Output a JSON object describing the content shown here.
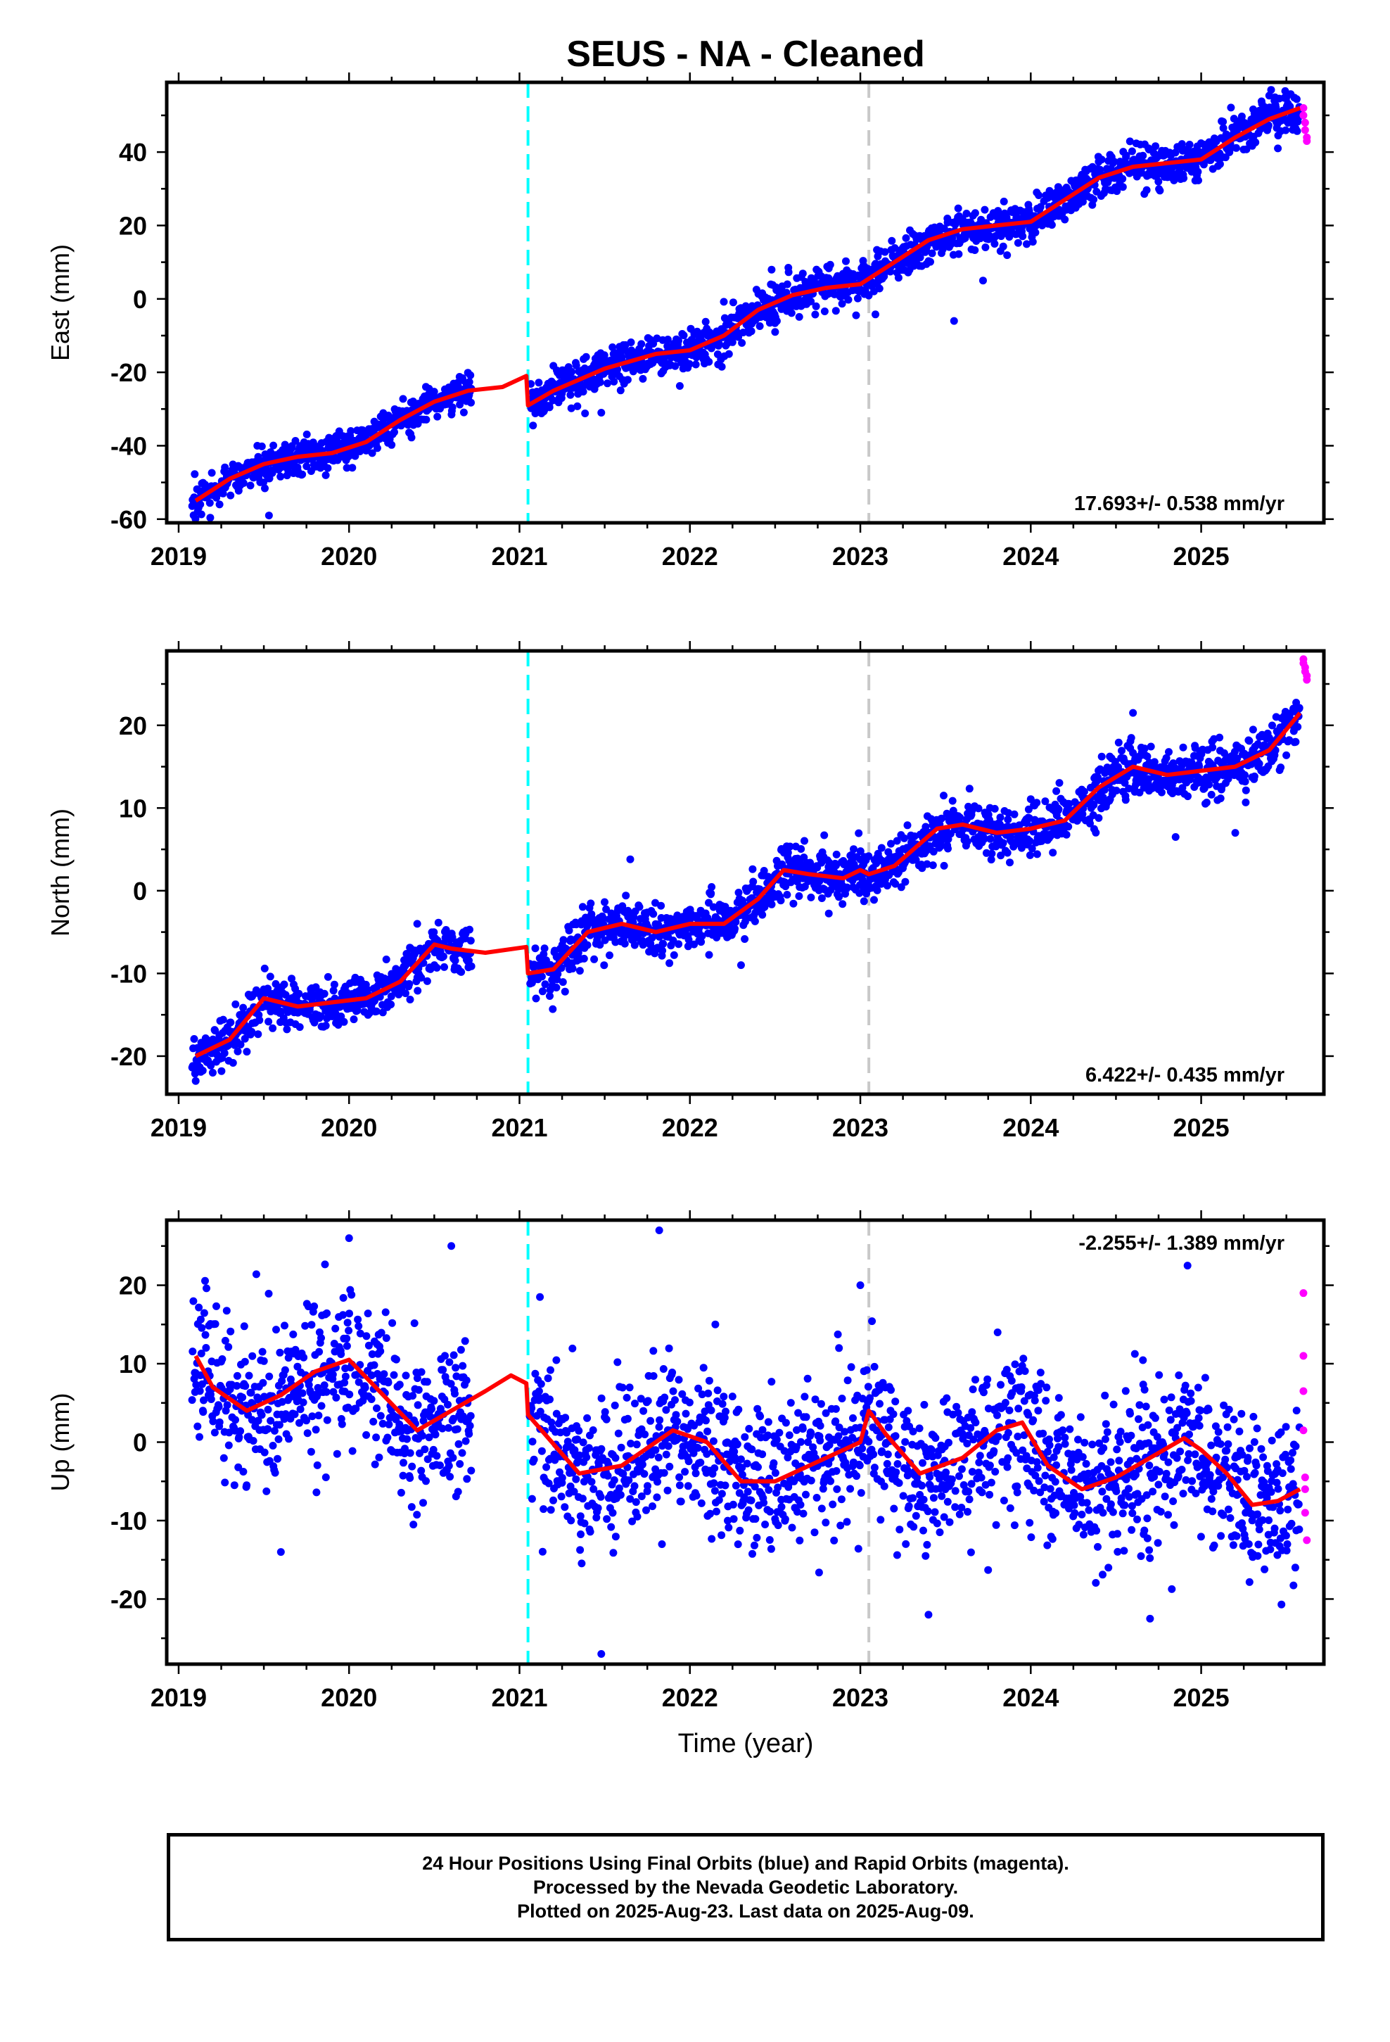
{
  "title": "SEUS  - NA - Cleaned",
  "footer": {
    "line1": "24 Hour Positions Using Final Orbits (blue) and Rapid Orbits (magenta).",
    "line2": "Processed by the Nevada Geodetic Laboratory.",
    "line3": "Plotted on 2025-Aug-23. Last data on 2025-Aug-09."
  },
  "colors": {
    "final_orbits": "#0000ff",
    "rapid_orbits": "#ff00ff",
    "model_fit": "#ff0000",
    "equipment_change": "#00ffff",
    "other_event": "#c8c8c8"
  },
  "chart_data": [
    {
      "type": "scatter",
      "ylabel": "East (mm)",
      "xlabel": "",
      "xlim": [
        2018.93,
        2025.72
      ],
      "ylim": [
        -61,
        59
      ],
      "xticks": [
        2019,
        2020,
        2021,
        2022,
        2023,
        2024,
        2025
      ],
      "yticks": [
        -60,
        -40,
        -20,
        0,
        20,
        40
      ],
      "rate_label": "17.693+/- 0.538 mm/yr",
      "rate_position": "bottom-right",
      "vlines": [
        {
          "x": 2021.05,
          "style": "dashed",
          "color": "#00ffff"
        },
        {
          "x": 2023.05,
          "style": "dashed",
          "color": "#c8c8c8"
        }
      ],
      "fit": {
        "x": [
          2019.1,
          2019.3,
          2019.5,
          2019.7,
          2019.9,
          2020.1,
          2020.3,
          2020.5,
          2020.7,
          2020.9,
          2021.04,
          2021.05,
          2021.2,
          2021.5,
          2021.8,
          2022.0,
          2022.2,
          2022.4,
          2022.6,
          2022.8,
          2023.0,
          2023.2,
          2023.4,
          2023.6,
          2023.8,
          2024.0,
          2024.2,
          2024.4,
          2024.6,
          2024.8,
          2025.0,
          2025.2,
          2025.4,
          2025.58
        ],
        "y": [
          -55,
          -49,
          -45,
          -43,
          -42,
          -39,
          -33,
          -28,
          -25,
          -24,
          -21,
          -29,
          -25,
          -19,
          -15,
          -14,
          -10,
          -3,
          1,
          3,
          4,
          10,
          16,
          19,
          20,
          21,
          27,
          33,
          36,
          37,
          38,
          44,
          49,
          52
        ]
      },
      "final_orbits": {
        "segments": [
          {
            "x0": 2019.08,
            "x1": 2020.72,
            "sigma": 2.6
          },
          {
            "x0": 2021.06,
            "x1": 2025.58,
            "sigma": 2.8
          }
        ],
        "outliers": [
          [
            2019.53,
            -59
          ],
          [
            2019.24,
            -56
          ],
          [
            2021.48,
            -31
          ],
          [
            2022.5,
            -9
          ],
          [
            2023.55,
            -6
          ],
          [
            2023.72,
            5
          ],
          [
            2025.45,
            41
          ],
          [
            2025.3,
            43
          ]
        ]
      },
      "rapid_orbits": {
        "x": [
          2025.6,
          2025.6,
          2025.61,
          2025.61,
          2025.62,
          2025.62
        ],
        "y": [
          52,
          50,
          48,
          46,
          44,
          43
        ]
      }
    },
    {
      "type": "scatter",
      "ylabel": "North (mm)",
      "xlabel": "",
      "xlim": [
        2018.93,
        2025.72
      ],
      "ylim": [
        -24.6,
        29
      ],
      "xticks": [
        2019,
        2020,
        2021,
        2022,
        2023,
        2024,
        2025
      ],
      "yticks": [
        -20,
        -10,
        0,
        10,
        20
      ],
      "rate_label": "6.422+/- 0.435 mm/yr",
      "rate_position": "bottom-right",
      "vlines": [
        {
          "x": 2021.05,
          "style": "dashed",
          "color": "#00ffff"
        },
        {
          "x": 2023.05,
          "style": "dashed",
          "color": "#c8c8c8"
        }
      ],
      "fit": {
        "x": [
          2019.1,
          2019.3,
          2019.5,
          2019.7,
          2019.9,
          2020.1,
          2020.3,
          2020.5,
          2020.6,
          2020.8,
          2021.04,
          2021.05,
          2021.2,
          2021.4,
          2021.6,
          2021.8,
          2022.0,
          2022.2,
          2022.4,
          2022.55,
          2022.7,
          2022.9,
          2023.0,
          2023.05,
          2023.2,
          2023.45,
          2023.6,
          2023.8,
          2024.0,
          2024.2,
          2024.4,
          2024.6,
          2024.8,
          2025.0,
          2025.2,
          2025.4,
          2025.58
        ],
        "y": [
          -20,
          -18,
          -13,
          -14,
          -13.5,
          -13,
          -11,
          -6.5,
          -7,
          -7.5,
          -6.8,
          -10,
          -9.5,
          -5,
          -4,
          -5,
          -4,
          -4,
          -1,
          2.5,
          2,
          1.5,
          2.5,
          2,
          3,
          7.5,
          8,
          7,
          7.5,
          8.5,
          12.5,
          15,
          14,
          14.5,
          15,
          17,
          21.5
        ]
      },
      "final_orbits": {
        "segments": [
          {
            "x0": 2019.08,
            "x1": 2020.72,
            "sigma": 1.5
          },
          {
            "x0": 2021.06,
            "x1": 2025.58,
            "sigma": 1.6
          }
        ],
        "outliers": [
          [
            2019.1,
            -23
          ],
          [
            2019.2,
            -22
          ],
          [
            2021.65,
            3.8
          ],
          [
            2024.85,
            6.5
          ],
          [
            2025.2,
            7
          ],
          [
            2024.6,
            21.5
          ],
          [
            2020.4,
            -4
          ],
          [
            2022.3,
            -9
          ]
        ]
      },
      "rapid_orbits": {
        "x": [
          2025.6,
          2025.6,
          2025.61,
          2025.61,
          2025.62,
          2025.62
        ],
        "y": [
          28,
          27.5,
          27,
          26.5,
          26,
          25.5
        ]
      }
    },
    {
      "type": "scatter",
      "ylabel": "Up (mm)",
      "xlabel": "Time (year)",
      "xlim": [
        2018.93,
        2025.72
      ],
      "ylim": [
        -28.3,
        28.3
      ],
      "xticks": [
        2019,
        2020,
        2021,
        2022,
        2023,
        2024,
        2025
      ],
      "yticks": [
        -20,
        -10,
        0,
        10,
        20
      ],
      "rate_label": "-2.255+/- 1.389 mm/yr",
      "rate_position": "top-right",
      "vlines": [
        {
          "x": 2021.05,
          "style": "dashed",
          "color": "#00ffff"
        },
        {
          "x": 2023.05,
          "style": "dashed",
          "color": "#c8c8c8"
        }
      ],
      "fit": {
        "x": [
          2019.1,
          2019.2,
          2019.4,
          2019.6,
          2019.8,
          2020.0,
          2020.2,
          2020.4,
          2020.6,
          2020.8,
          2020.95,
          2021.04,
          2021.05,
          2021.15,
          2021.35,
          2021.6,
          2021.9,
          2022.1,
          2022.3,
          2022.5,
          2022.7,
          2022.9,
          2023.0,
          2023.05,
          2023.15,
          2023.35,
          2023.6,
          2023.8,
          2023.95,
          2024.1,
          2024.3,
          2024.5,
          2024.7,
          2024.9,
          2025.0,
          2025.15,
          2025.3,
          2025.45,
          2025.58
        ],
        "y": [
          11,
          7,
          4,
          6,
          9,
          10.5,
          6,
          1.5,
          4,
          6.5,
          8.5,
          7.5,
          3.5,
          1,
          -4,
          -3,
          1.5,
          0,
          -5,
          -5,
          -3,
          -1,
          0,
          4,
          1,
          -4,
          -2,
          1.5,
          2.5,
          -3,
          -6,
          -4.5,
          -2,
          0.5,
          -1,
          -4,
          -8,
          -7.5,
          -6
        ]
      },
      "final_orbits": {
        "segments": [
          {
            "x0": 2019.08,
            "x1": 2020.72,
            "sigma": 4.6
          },
          {
            "x0": 2021.06,
            "x1": 2025.58,
            "sigma": 4.8
          }
        ],
        "outliers": [
          [
            2021.82,
            27
          ],
          [
            2021.48,
            -27
          ],
          [
            2024.92,
            22.5
          ],
          [
            2020.0,
            26
          ],
          [
            2020.6,
            25
          ],
          [
            2019.6,
            -14
          ],
          [
            2023.0,
            20
          ],
          [
            2023.4,
            -22
          ],
          [
            2024.7,
            -22.5
          ],
          [
            2021.12,
            18.5
          ]
        ]
      },
      "rapid_orbits": {
        "x": [
          2025.6,
          2025.6,
          2025.6,
          2025.6,
          2025.61,
          2025.61,
          2025.61,
          2025.62
        ],
        "y": [
          19,
          11,
          6.5,
          1.5,
          -4.5,
          -6,
          -9,
          -12.5
        ]
      }
    }
  ]
}
